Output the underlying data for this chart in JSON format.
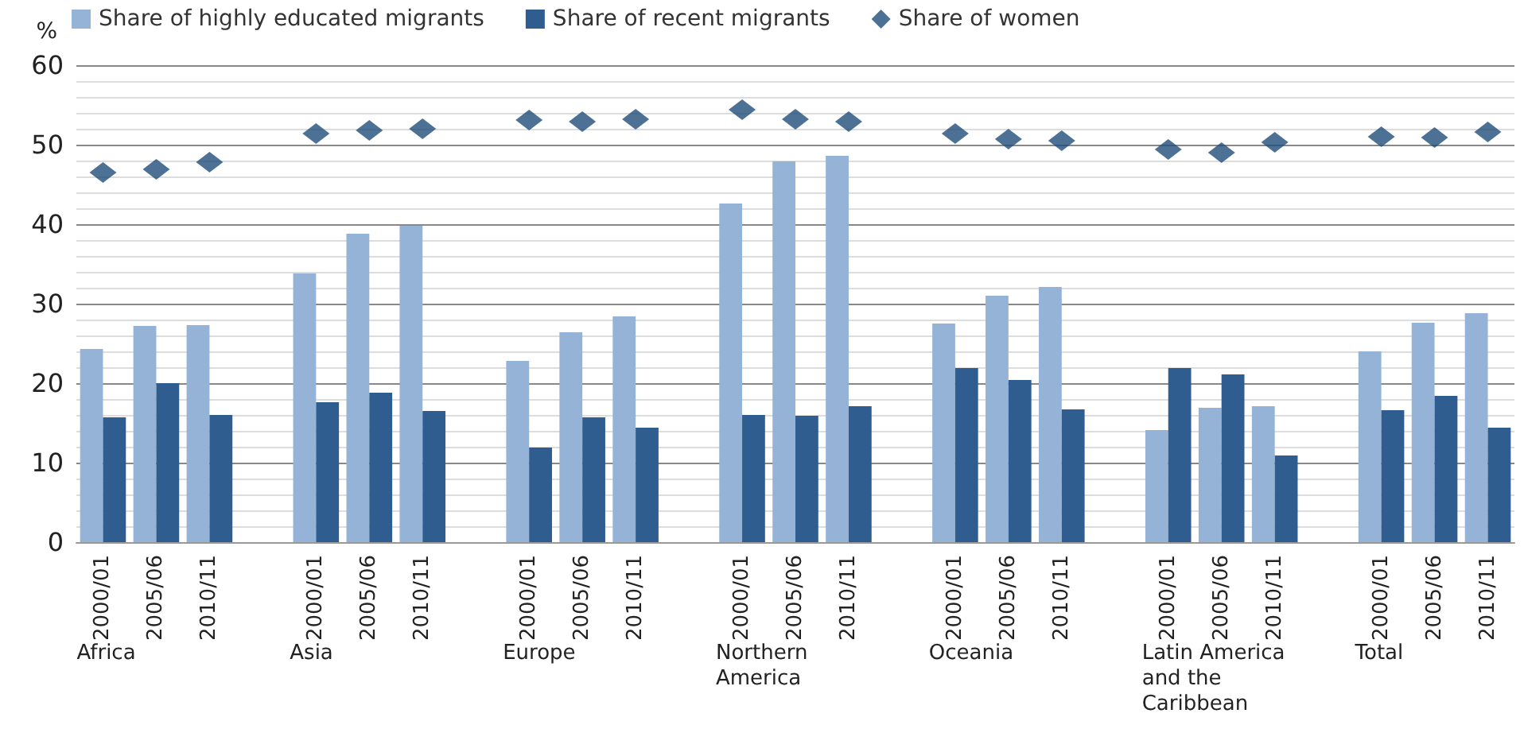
{
  "chart_data": {
    "type": "bar",
    "ylabel": "%",
    "categories": [
      "2000/01",
      "2005/06",
      "2010/11",
      null,
      "2000/01",
      "2005/06",
      "2010/11",
      null,
      "2000/01",
      "2005/06",
      "2010/11",
      null,
      "2000/01",
      "2005/06",
      "2010/11",
      null,
      "2000/01",
      "2005/06",
      "2010/11",
      null,
      "2000/01",
      "2005/06",
      "2010/11",
      null,
      "2000/01",
      "2005/06",
      "2010/11"
    ],
    "series": [
      {
        "name": "Share of highly educated migrants",
        "color": "#95b3d7",
        "values": [
          24.3,
          27.2,
          27.3,
          null,
          33.8,
          38.8,
          39.8,
          null,
          22.8,
          26.4,
          28.4,
          null,
          42.6,
          47.9,
          48.6,
          null,
          27.5,
          31.0,
          32.1,
          null,
          14.1,
          16.9,
          17.1,
          null,
          24.0,
          27.6,
          28.8
        ]
      },
      {
        "name": "Share of recent migrants",
        "color": "#2f5d8f",
        "values": [
          15.7,
          20.0,
          16.0,
          null,
          17.6,
          18.8,
          16.5,
          null,
          11.9,
          15.7,
          14.4,
          null,
          16.0,
          15.9,
          17.1,
          null,
          21.9,
          20.4,
          16.7,
          null,
          21.9,
          21.1,
          10.9,
          null,
          16.6,
          18.4,
          14.4
        ]
      },
      {
        "name": "Share of women",
        "type": "scatter",
        "marker": "diamond",
        "color": "#1f4e79",
        "values": [
          46.5,
          46.9,
          47.8,
          null,
          51.4,
          51.8,
          52.0,
          null,
          53.1,
          52.9,
          53.2,
          null,
          54.4,
          53.2,
          52.9,
          null,
          51.4,
          50.7,
          50.5,
          null,
          49.4,
          49.0,
          50.3,
          null,
          51.0,
          50.9,
          51.6
        ]
      }
    ],
    "annotations": [
      "Africa",
      "Asia",
      "Europe",
      "Northern America",
      "Oceania",
      "Latin America and the Caribbean",
      "Total"
    ],
    "ylim": [
      0,
      60
    ],
    "yticks": [
      0,
      10,
      20,
      30,
      40,
      50,
      60
    ],
    "grid": "y",
    "legend": "top"
  }
}
